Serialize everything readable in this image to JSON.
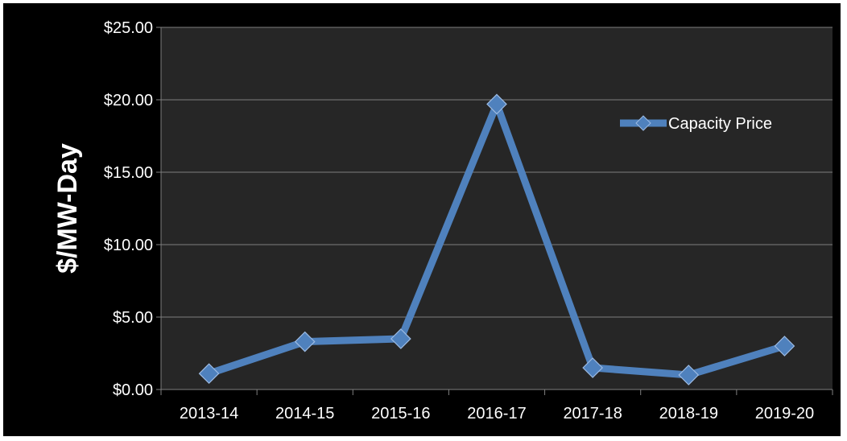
{
  "chart_data": {
    "type": "line",
    "categories": [
      "2013-14",
      "2014-15",
      "2015-16",
      "2016-17",
      "2017-18",
      "2018-19",
      "2019-20"
    ],
    "series": [
      {
        "name": "Capacity Price",
        "values": [
          1.1,
          3.3,
          3.5,
          19.7,
          1.5,
          1.0,
          3.0
        ]
      }
    ],
    "ylabel": "$/MW-Day",
    "xlabel": "",
    "ylim": [
      0,
      25
    ],
    "y_ticks": [
      0,
      5,
      10,
      15,
      20,
      25
    ],
    "y_tick_labels": [
      "$0.00",
      "$5.00",
      "$10.00",
      "$15.00",
      "$20.00",
      "$25.00"
    ],
    "grid": true,
    "legend_position": "top-right",
    "colors": {
      "background": "#000000",
      "plot_area": "#262626",
      "gridline": "#7f7f7f",
      "series": "#4f81bd",
      "text": "#ffffff"
    },
    "marker": "diamond"
  }
}
